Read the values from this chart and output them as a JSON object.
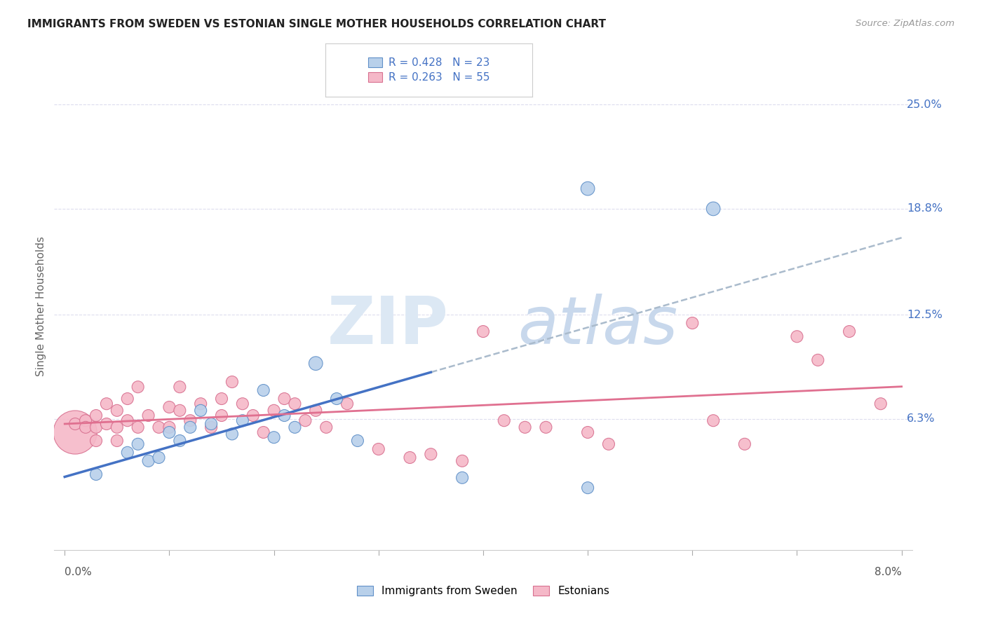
{
  "title": "IMMIGRANTS FROM SWEDEN VS ESTONIAN SINGLE MOTHER HOUSEHOLDS CORRELATION CHART",
  "source": "Source: ZipAtlas.com",
  "ylabel": "Single Mother Households",
  "xlim": [
    0.0,
    0.08
  ],
  "ylim": [
    -0.015,
    0.275
  ],
  "ytick_positions": [
    0.063,
    0.125,
    0.188,
    0.25
  ],
  "ytick_labels": [
    "6.3%",
    "12.5%",
    "18.8%",
    "25.0%"
  ],
  "xtick_label_left": "0.0%",
  "xtick_label_right": "8.0%",
  "legend_line1": "R = 0.428   N = 23",
  "legend_line2": "R = 0.263   N = 55",
  "legend_bottom_blue": "Immigrants from Sweden",
  "legend_bottom_pink": "Estonians",
  "blue_scatter_color": "#b8d0ea",
  "blue_edge_color": "#6090c8",
  "pink_scatter_color": "#f5b8c8",
  "pink_edge_color": "#d87090",
  "blue_line_color": "#4472c4",
  "pink_line_color": "#e07090",
  "dash_line_color": "#aabbcc",
  "label_color": "#4472c4",
  "grid_color": "#ddddee",
  "blue_x": [
    0.003,
    0.006,
    0.007,
    0.008,
    0.009,
    0.01,
    0.011,
    0.012,
    0.013,
    0.014,
    0.016,
    0.017,
    0.019,
    0.02,
    0.021,
    0.022,
    0.024,
    0.026,
    0.028,
    0.038,
    0.05,
    0.05,
    0.062
  ],
  "blue_y": [
    0.03,
    0.043,
    0.048,
    0.038,
    0.04,
    0.055,
    0.05,
    0.058,
    0.068,
    0.06,
    0.054,
    0.062,
    0.08,
    0.052,
    0.065,
    0.058,
    0.096,
    0.075,
    0.05,
    0.028,
    0.022,
    0.2,
    0.188
  ],
  "blue_sizes": [
    150,
    150,
    150,
    150,
    150,
    150,
    150,
    150,
    150,
    150,
    150,
    150,
    150,
    150,
    150,
    150,
    200,
    150,
    150,
    150,
    150,
    200,
    200
  ],
  "pink_x": [
    0.001,
    0.001,
    0.002,
    0.002,
    0.003,
    0.003,
    0.003,
    0.004,
    0.004,
    0.005,
    0.005,
    0.005,
    0.006,
    0.006,
    0.007,
    0.007,
    0.008,
    0.009,
    0.01,
    0.01,
    0.011,
    0.011,
    0.012,
    0.013,
    0.014,
    0.015,
    0.015,
    0.016,
    0.017,
    0.018,
    0.019,
    0.02,
    0.021,
    0.022,
    0.023,
    0.024,
    0.025,
    0.027,
    0.03,
    0.033,
    0.035,
    0.038,
    0.04,
    0.042,
    0.044,
    0.046,
    0.05,
    0.052,
    0.06,
    0.062,
    0.065,
    0.07,
    0.072,
    0.075,
    0.078
  ],
  "pink_y": [
    0.055,
    0.06,
    0.062,
    0.058,
    0.05,
    0.065,
    0.058,
    0.06,
    0.072,
    0.05,
    0.068,
    0.058,
    0.075,
    0.062,
    0.082,
    0.058,
    0.065,
    0.058,
    0.07,
    0.058,
    0.082,
    0.068,
    0.062,
    0.072,
    0.058,
    0.075,
    0.065,
    0.085,
    0.072,
    0.065,
    0.055,
    0.068,
    0.075,
    0.072,
    0.062,
    0.068,
    0.058,
    0.072,
    0.045,
    0.04,
    0.042,
    0.038,
    0.115,
    0.062,
    0.058,
    0.058,
    0.055,
    0.048,
    0.12,
    0.062,
    0.048,
    0.112,
    0.098,
    0.115,
    0.072
  ],
  "pink_sizes": [
    2000,
    150,
    150,
    150,
    150,
    150,
    150,
    150,
    150,
    150,
    150,
    150,
    150,
    150,
    150,
    150,
    150,
    150,
    150,
    150,
    150,
    150,
    150,
    150,
    150,
    150,
    150,
    150,
    150,
    150,
    150,
    150,
    150,
    150,
    150,
    150,
    150,
    150,
    150,
    150,
    150,
    150,
    150,
    150,
    150,
    150,
    150,
    150,
    150,
    150,
    150,
    150,
    150,
    150,
    150
  ]
}
